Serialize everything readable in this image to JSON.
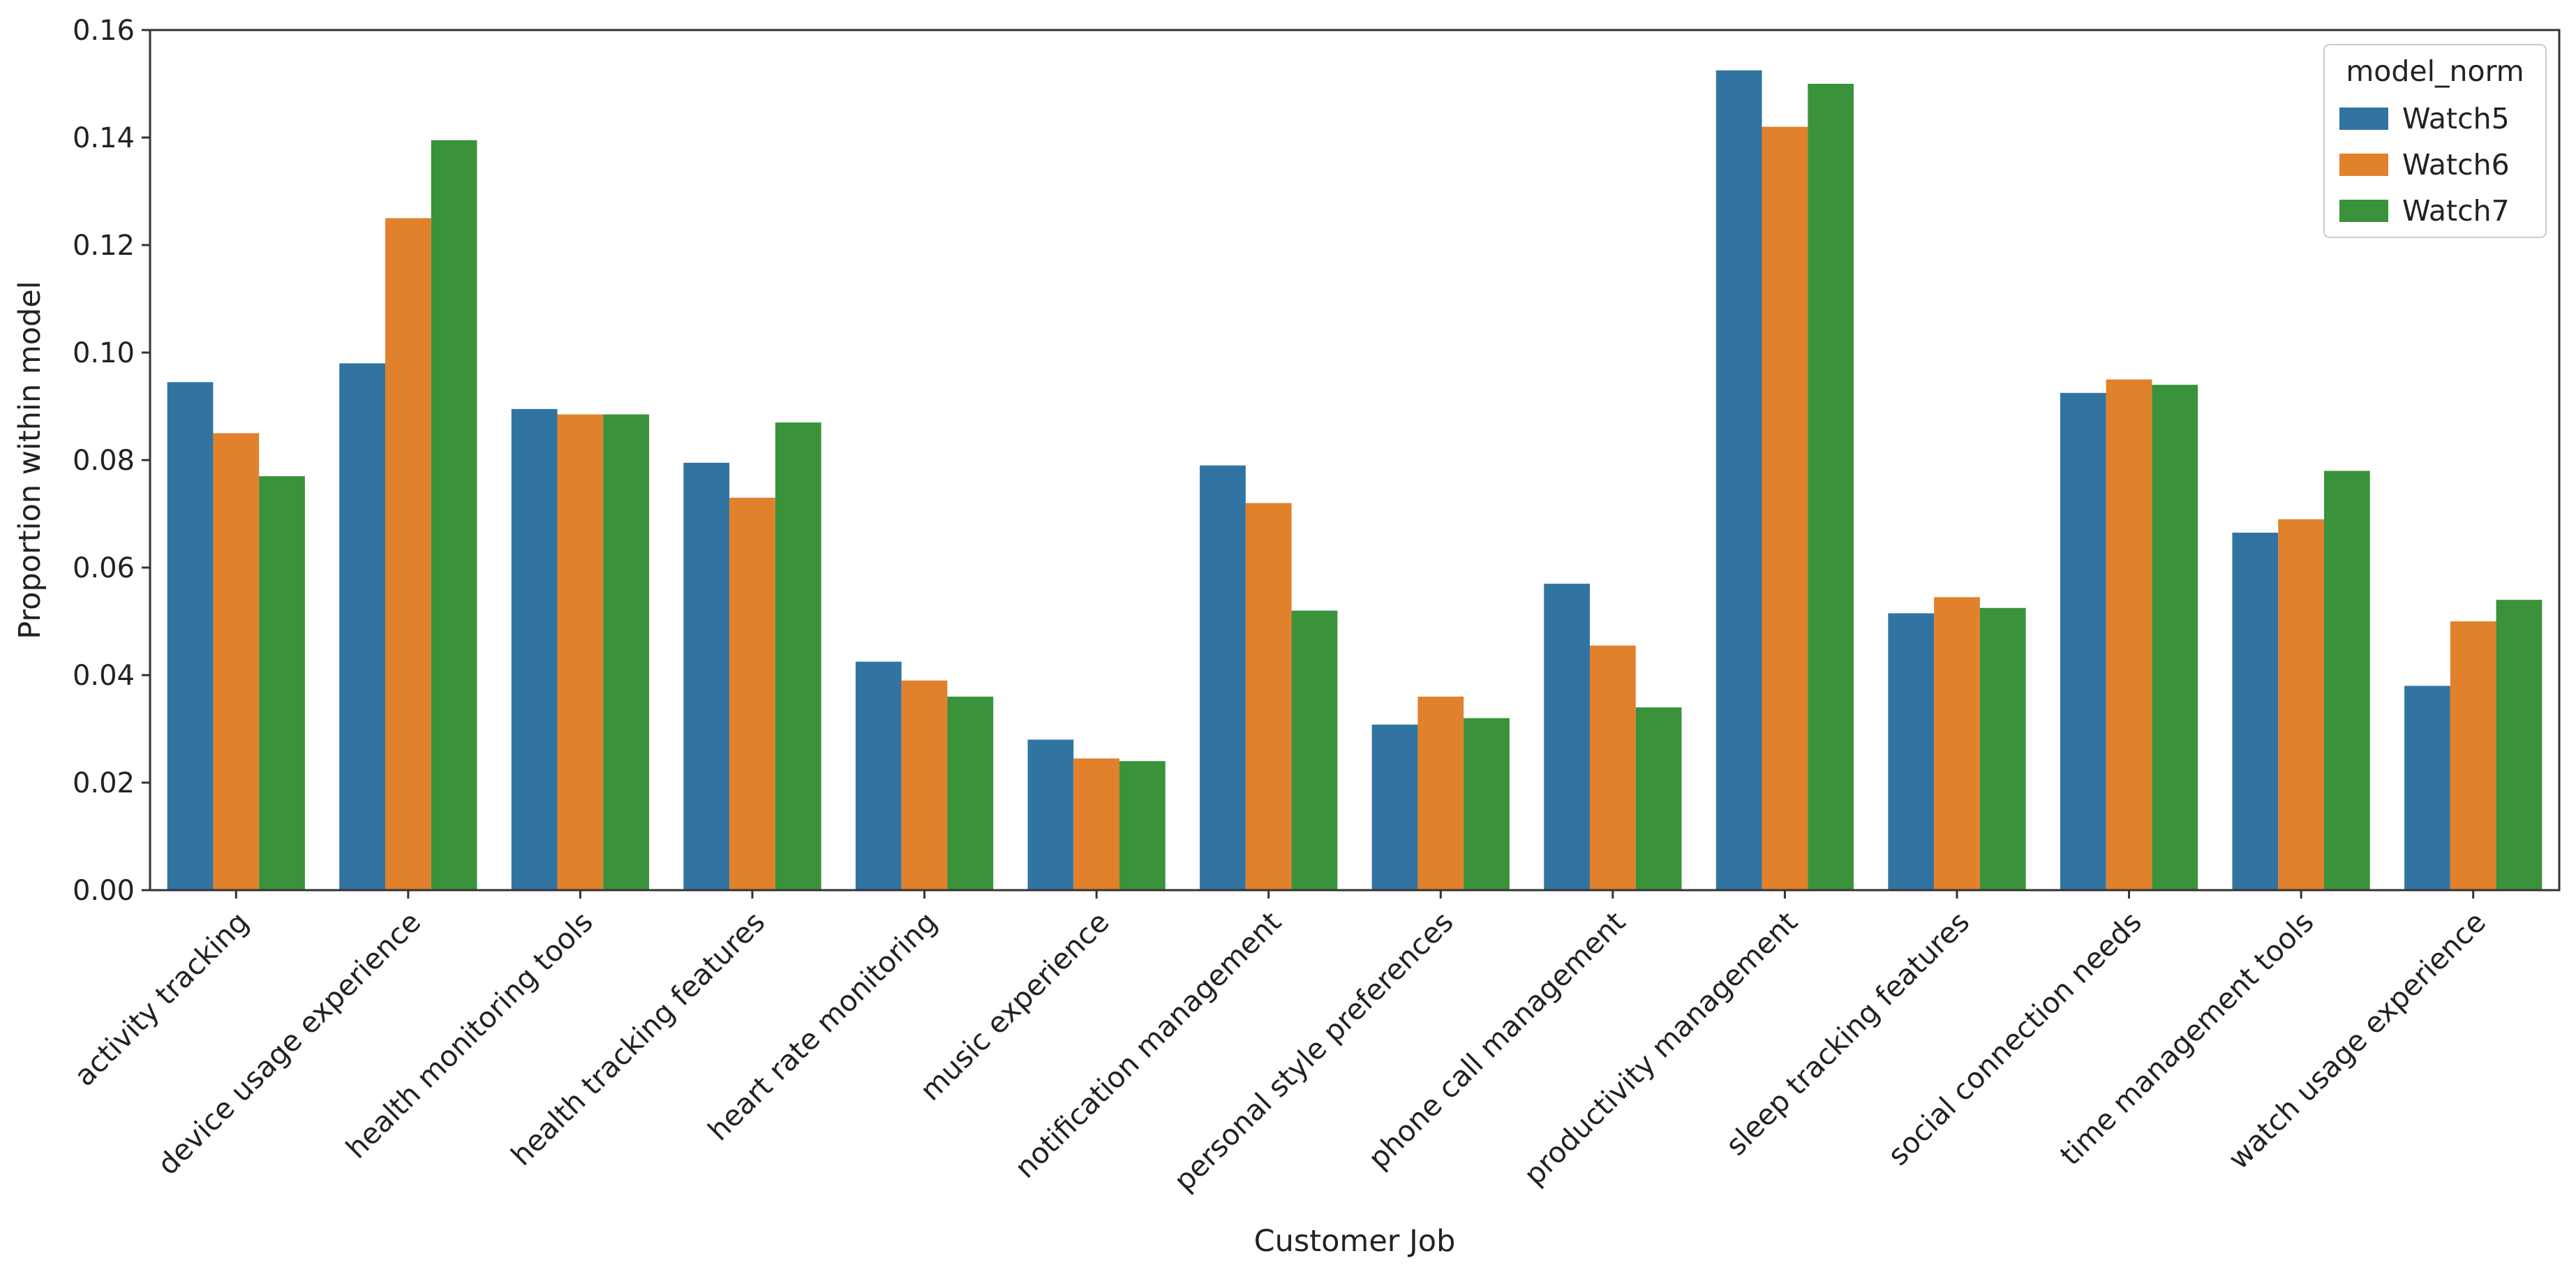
{
  "chart_data": {
    "type": "bar",
    "title": "",
    "xlabel": "Customer Job",
    "ylabel": "Proportion within model",
    "ylim": [
      0,
      0.16
    ],
    "yticks": [
      "0.00",
      "0.02",
      "0.04",
      "0.06",
      "0.08",
      "0.10",
      "0.12",
      "0.14",
      "0.16"
    ],
    "ytick_values": [
      0,
      0.02,
      0.04,
      0.06,
      0.08,
      0.1,
      0.12,
      0.14,
      0.16
    ],
    "grid": false,
    "legend": {
      "title": "model_norm",
      "position": "top-right"
    },
    "categories": [
      "activity tracking",
      "device usage experience",
      "health monitoring tools",
      "health tracking features",
      "heart rate monitoring",
      "music experience",
      "notification management",
      "personal style preferences",
      "phone call management",
      "productivity management",
      "sleep tracking features",
      "social connection needs",
      "time management tools",
      "watch usage experience"
    ],
    "series": [
      {
        "name": "Watch5",
        "color": "#3274a1",
        "values": [
          0.0945,
          0.098,
          0.0895,
          0.0795,
          0.0425,
          0.028,
          0.079,
          0.0308,
          0.057,
          0.1525,
          0.0515,
          0.0925,
          0.0665,
          0.038
        ]
      },
      {
        "name": "Watch6",
        "color": "#e1812c",
        "values": [
          0.085,
          0.125,
          0.0885,
          0.073,
          0.039,
          0.0245,
          0.072,
          0.036,
          0.0455,
          0.142,
          0.0545,
          0.095,
          0.069,
          0.05
        ]
      },
      {
        "name": "Watch7",
        "color": "#3a923a",
        "values": [
          0.077,
          0.1395,
          0.0885,
          0.087,
          0.036,
          0.024,
          0.052,
          0.032,
          0.034,
          0.15,
          0.0525,
          0.094,
          0.078,
          0.054
        ]
      }
    ]
  }
}
